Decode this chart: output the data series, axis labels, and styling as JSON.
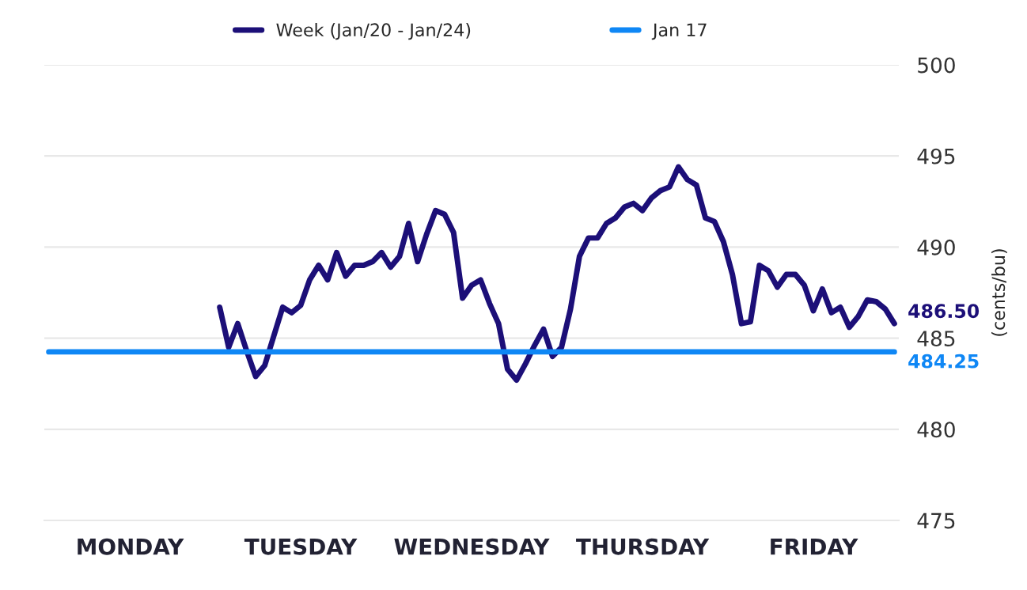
{
  "chart_data": {
    "type": "line",
    "ylabel": "(cents/bu)",
    "categories": [
      null,
      null,
      null,
      null,
      null,
      null,
      null,
      null,
      null,
      "MONDAY",
      null,
      null,
      null,
      null,
      null,
      null,
      null,
      null,
      null,
      null,
      null,
      null,
      null,
      null,
      null,
      null,
      null,
      null,
      "TUESDAY",
      null,
      null,
      null,
      null,
      null,
      null,
      null,
      null,
      null,
      null,
      null,
      null,
      null,
      null,
      null,
      null,
      null,
      null,
      "WEDNESDAY",
      null,
      null,
      null,
      null,
      null,
      null,
      null,
      null,
      null,
      null,
      null,
      null,
      null,
      null,
      null,
      null,
      null,
      null,
      "THURSDAY",
      null,
      null,
      null,
      null,
      null,
      null,
      null,
      null,
      null,
      null,
      null,
      null,
      null,
      null,
      null,
      null,
      null,
      null,
      "FRIDAY",
      null,
      null,
      null,
      null,
      null,
      null,
      null,
      null,
      null
    ],
    "ylim": [
      475,
      500
    ],
    "yticks": [
      475,
      480,
      485,
      490,
      495,
      500
    ],
    "grid": "y",
    "legend": "top",
    "marker": "none",
    "line_style": "solid",
    "series": [
      {
        "name": "Week (Jan/20 - Jan/24)",
        "color": "#1c0f78",
        "values": [
          null,
          null,
          null,
          null,
          null,
          null,
          null,
          null,
          null,
          null,
          null,
          null,
          null,
          null,
          null,
          null,
          null,
          null,
          null,
          486.7,
          484.5,
          485.8,
          484.3,
          482.9,
          483.5,
          485.1,
          486.7,
          486.4,
          486.8,
          488.2,
          489.0,
          488.2,
          489.7,
          488.4,
          489.0,
          489.0,
          489.2,
          489.7,
          488.9,
          489.5,
          491.3,
          489.2,
          490.7,
          492.0,
          491.8,
          490.8,
          487.2,
          487.9,
          488.2,
          486.9,
          485.8,
          483.3,
          482.7,
          483.6,
          484.6,
          485.5,
          484.0,
          484.5,
          486.6,
          489.5,
          490.5,
          490.5,
          491.3,
          491.6,
          492.2,
          492.4,
          492.0,
          492.7,
          493.1,
          493.3,
          494.4,
          493.7,
          493.4,
          491.6,
          491.4,
          490.3,
          488.5,
          485.8,
          485.9,
          489.0,
          488.7,
          487.8,
          488.5,
          488.5,
          487.9,
          486.5,
          487.7,
          486.4,
          486.7,
          485.6,
          486.2,
          487.1,
          487.0,
          486.6,
          485.8
        ]
      },
      {
        "name": "Jan 17",
        "color": "#0f87f5",
        "values": [
          484.25,
          484.25,
          484.25,
          484.25,
          484.25,
          484.25,
          484.25,
          484.25,
          484.25,
          484.25,
          484.25,
          484.25,
          484.25,
          484.25,
          484.25,
          484.25,
          484.25,
          484.25,
          484.25,
          484.25,
          484.25,
          484.25,
          484.25,
          484.25,
          484.25,
          484.25,
          484.25,
          484.25,
          484.25,
          484.25,
          484.25,
          484.25,
          484.25,
          484.25,
          484.25,
          484.25,
          484.25,
          484.25,
          484.25,
          484.25,
          484.25,
          484.25,
          484.25,
          484.25,
          484.25,
          484.25,
          484.25,
          484.25,
          484.25,
          484.25,
          484.25,
          484.25,
          484.25,
          484.25,
          484.25,
          484.25,
          484.25,
          484.25,
          484.25,
          484.25,
          484.25,
          484.25,
          484.25,
          484.25,
          484.25,
          484.25,
          484.25,
          484.25,
          484.25,
          484.25,
          484.25,
          484.25,
          484.25,
          484.25,
          484.25,
          484.25,
          484.25,
          484.25,
          484.25,
          484.25,
          484.25,
          484.25,
          484.25,
          484.25,
          484.25,
          484.25,
          484.25,
          484.25,
          484.25,
          484.25,
          484.25,
          484.25,
          484.25,
          484.25,
          484.25
        ]
      }
    ],
    "annotations": [
      "486.50",
      "484.25"
    ]
  }
}
